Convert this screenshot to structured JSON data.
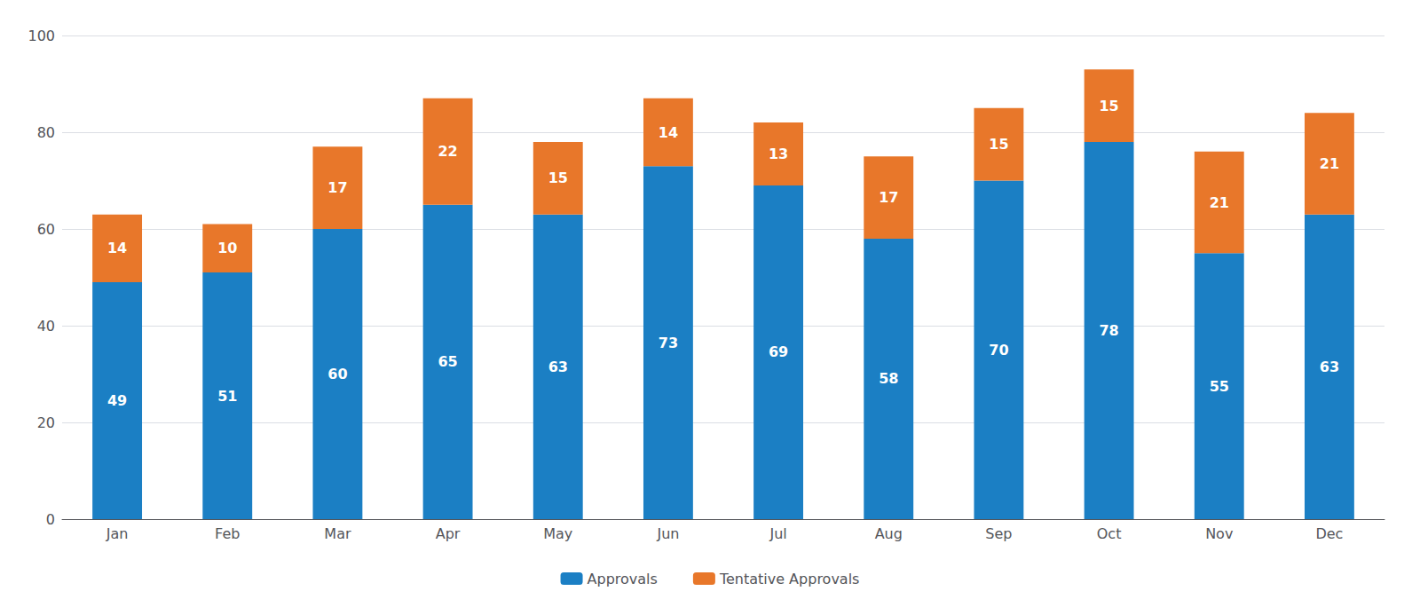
{
  "chart_data": {
    "type": "bar",
    "categories": [
      "Jan",
      "Feb",
      "Mar",
      "Apr",
      "May",
      "Jun",
      "Jul",
      "Aug",
      "Sep",
      "Oct",
      "Nov",
      "Dec"
    ],
    "series": [
      {
        "name": "Approvals",
        "color": "#1b7fc4",
        "values": [
          49,
          51,
          60,
          65,
          63,
          73,
          69,
          58,
          70,
          78,
          55,
          63
        ]
      },
      {
        "name": "Tentative Approvals",
        "color": "#e8772a",
        "values": [
          14,
          10,
          17,
          22,
          15,
          14,
          13,
          17,
          15,
          15,
          21,
          21
        ]
      }
    ],
    "stacked": true,
    "data_labels": true,
    "ylim": [
      0,
      100
    ],
    "yticks": [
      0,
      20,
      40,
      60,
      80,
      100
    ],
    "grid": true,
    "legend": "bottom"
  }
}
